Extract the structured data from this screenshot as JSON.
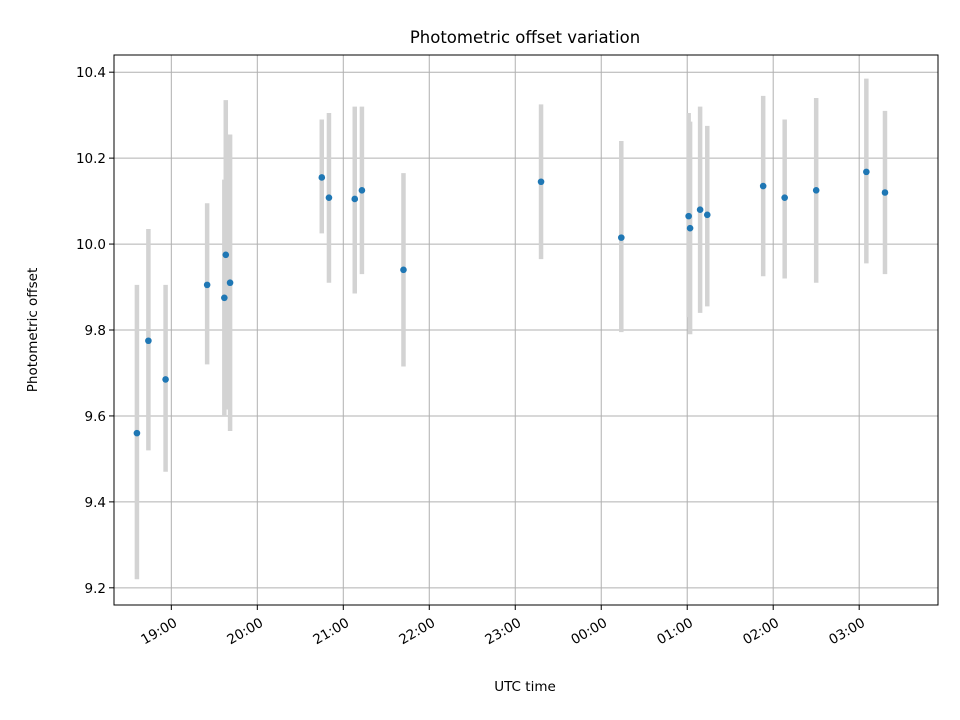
{
  "chart_data": {
    "type": "scatter",
    "title": "Photometric offset variation",
    "xlabel": "UTC time",
    "ylabel": "Photometric offset",
    "x_tick_labels": [
      "19:00",
      "20:00",
      "21:00",
      "22:00",
      "23:00",
      "00:00",
      "01:00",
      "02:00",
      "03:00"
    ],
    "x_tick_times": [
      "19:00",
      "20:00",
      "21:00",
      "22:00",
      "23:00",
      "00:00",
      "01:00",
      "02:00",
      "03:00"
    ],
    "xlim": [
      "18:20",
      "03:55"
    ],
    "y_tick_labels": [
      "9.2",
      "9.4",
      "9.6",
      "9.8",
      "10.0",
      "10.2",
      "10.4"
    ],
    "yticks": [
      9.2,
      9.4,
      9.6,
      9.8,
      10.0,
      10.2,
      10.4
    ],
    "ylim": [
      9.16,
      10.44
    ],
    "grid": true,
    "marker_color": "#1f77b4",
    "errorbar_color": "#d3d3d3",
    "points": [
      {
        "x": "18:36",
        "y": 9.56,
        "ylow": 9.22,
        "yhigh": 9.905
      },
      {
        "x": "18:44",
        "y": 9.775,
        "ylow": 9.52,
        "yhigh": 10.035
      },
      {
        "x": "18:56",
        "y": 9.685,
        "ylow": 9.47,
        "yhigh": 9.905
      },
      {
        "x": "19:25",
        "y": 9.905,
        "ylow": 9.72,
        "yhigh": 10.095
      },
      {
        "x": "19:37",
        "y": 9.875,
        "ylow": 9.6,
        "yhigh": 10.15
      },
      {
        "x": "19:38",
        "y": 9.975,
        "ylow": 9.615,
        "yhigh": 10.335
      },
      {
        "x": "19:41",
        "y": 9.91,
        "ylow": 9.565,
        "yhigh": 10.255
      },
      {
        "x": "20:45",
        "y": 10.155,
        "ylow": 10.025,
        "yhigh": 10.29
      },
      {
        "x": "20:50",
        "y": 10.108,
        "ylow": 9.91,
        "yhigh": 10.305
      },
      {
        "x": "21:08",
        "y": 10.105,
        "ylow": 9.885,
        "yhigh": 10.32
      },
      {
        "x": "21:13",
        "y": 10.125,
        "ylow": 9.93,
        "yhigh": 10.32
      },
      {
        "x": "21:42",
        "y": 9.94,
        "ylow": 9.715,
        "yhigh": 10.165
      },
      {
        "x": "23:18",
        "y": 10.145,
        "ylow": 9.965,
        "yhigh": 10.325
      },
      {
        "x": "00:14",
        "y": 10.015,
        "ylow": 9.795,
        "yhigh": 10.24
      },
      {
        "x": "01:01",
        "y": 10.065,
        "ylow": 9.83,
        "yhigh": 10.305
      },
      {
        "x": "01:02",
        "y": 10.037,
        "ylow": 9.79,
        "yhigh": 10.285
      },
      {
        "x": "01:09",
        "y": 10.08,
        "ylow": 9.84,
        "yhigh": 10.32
      },
      {
        "x": "01:14",
        "y": 10.068,
        "ylow": 9.855,
        "yhigh": 10.275
      },
      {
        "x": "01:53",
        "y": 10.135,
        "ylow": 9.925,
        "yhigh": 10.345
      },
      {
        "x": "02:08",
        "y": 10.108,
        "ylow": 9.92,
        "yhigh": 10.29
      },
      {
        "x": "02:30",
        "y": 10.125,
        "ylow": 9.91,
        "yhigh": 10.34
      },
      {
        "x": "03:05",
        "y": 10.168,
        "ylow": 9.955,
        "yhigh": 10.385
      },
      {
        "x": "03:18",
        "y": 10.12,
        "ylow": 9.93,
        "yhigh": 10.31
      }
    ]
  }
}
